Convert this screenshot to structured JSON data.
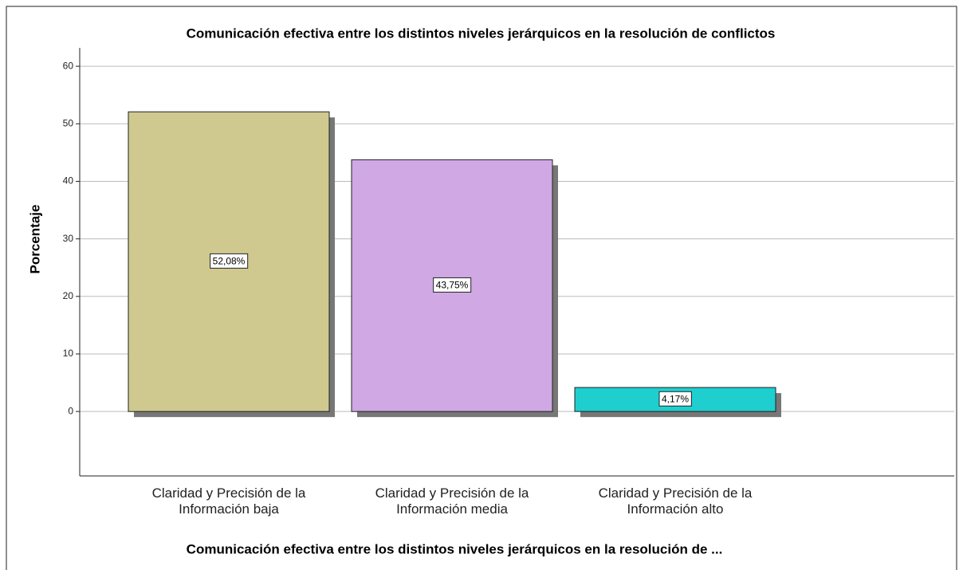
{
  "chart_data": {
    "type": "bar",
    "title": "Comunicación efectiva entre los distintos niveles jerárquicos en la resolución de conflictos",
    "x_label": "Comunicación efectiva entre los distintos niveles jerárquicos en la resolución de ...",
    "y_label": "Porcentaje",
    "categories": [
      "Claridad y Precisión de la Información baja",
      "Claridad y Precisión de la Información media",
      "Claridad y Precisión de la Información alto"
    ],
    "values": [
      52.08,
      43.75,
      4.17
    ],
    "value_labels": [
      "52,08%",
      "43,75%",
      "4,17%"
    ],
    "colors": [
      "#cfc98f",
      "#cfa8e4",
      "#1fcfcf"
    ],
    "ylim": [
      -11.2,
      63.2
    ],
    "yticks": [
      0,
      10,
      20,
      30,
      40,
      50,
      60
    ],
    "grid": true
  }
}
